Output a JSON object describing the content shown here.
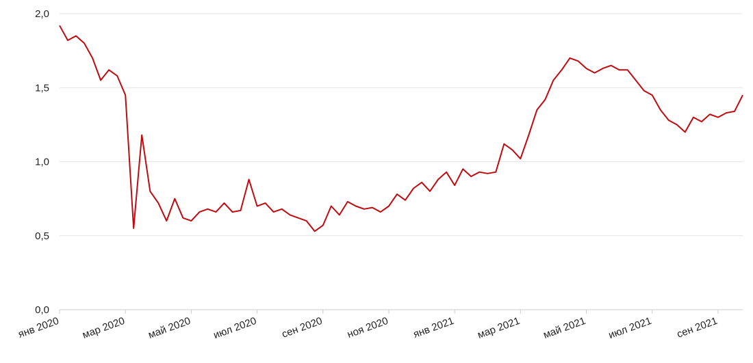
{
  "chart_data": {
    "type": "line",
    "categories": [
      "янв 2020",
      null,
      null,
      null,
      null,
      null,
      null,
      null,
      "мар 2020",
      null,
      null,
      null,
      null,
      null,
      null,
      null,
      "май 2020",
      null,
      null,
      null,
      null,
      null,
      null,
      null,
      "июл 2020",
      null,
      null,
      null,
      null,
      null,
      null,
      null,
      "сен 2020",
      null,
      null,
      null,
      null,
      null,
      null,
      null,
      "ноя 2020",
      null,
      null,
      null,
      null,
      null,
      null,
      null,
      "янв 2021",
      null,
      null,
      null,
      null,
      null,
      null,
      null,
      "мар 2021",
      null,
      null,
      null,
      null,
      null,
      null,
      null,
      "май 2021",
      null,
      null,
      null,
      null,
      null,
      null,
      null,
      "июл 2021",
      null,
      null,
      null,
      null,
      null,
      null,
      null,
      "сен 2021",
      null,
      null,
      null
    ],
    "series": [
      {
        "color": "#c00a0f",
        "values": [
          1.92,
          1.82,
          1.85,
          1.8,
          1.7,
          1.55,
          1.62,
          1.58,
          1.45,
          0.55,
          1.18,
          0.8,
          0.72,
          0.6,
          0.75,
          0.62,
          0.6,
          0.66,
          0.68,
          0.66,
          0.72,
          0.66,
          0.67,
          0.88,
          0.7,
          0.72,
          0.66,
          0.68,
          0.64,
          0.62,
          0.6,
          0.53,
          0.57,
          0.7,
          0.64,
          0.73,
          0.7,
          0.68,
          0.69,
          0.66,
          0.7,
          0.78,
          0.74,
          0.82,
          0.86,
          0.8,
          0.88,
          0.93,
          0.84,
          0.95,
          0.9,
          0.93,
          0.92,
          0.93,
          1.12,
          1.08,
          1.02,
          1.18,
          1.35,
          1.42,
          1.55,
          1.62,
          1.7,
          1.68,
          1.63,
          1.6,
          1.63,
          1.65,
          1.62,
          1.62,
          1.55,
          1.48,
          1.45,
          1.35,
          1.28,
          1.25,
          1.2,
          1.3,
          1.27,
          1.32,
          1.3,
          1.33,
          1.34,
          1.45
        ]
      }
    ],
    "ylim": [
      0,
      2
    ],
    "yticks": [
      {
        "value": 0,
        "label": "0,0"
      },
      {
        "value": 0.5,
        "label": "0,5"
      },
      {
        "value": 1,
        "label": "1,0"
      },
      {
        "value": 1.5,
        "label": "1,5"
      },
      {
        "value": 2,
        "label": "2,0"
      }
    ],
    "grid": true
  }
}
